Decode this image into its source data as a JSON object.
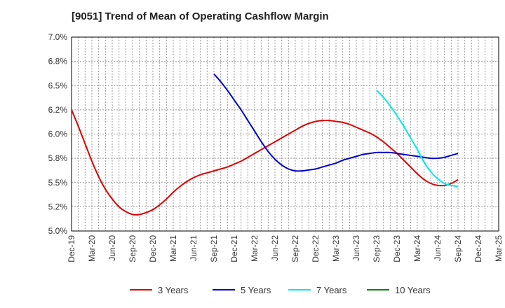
{
  "title": "[9051]  Trend of Mean of Operating Cashflow Margin",
  "chart_data": {
    "type": "line",
    "title": "[9051]  Trend of Mean of Operating Cashflow Margin",
    "xlabel": "",
    "ylabel": "",
    "x_tick_labels": [
      "Dec-19",
      "Mar-20",
      "Jun-20",
      "Sep-20",
      "Dec-20",
      "Mar-21",
      "Jun-21",
      "Sep-21",
      "Dec-21",
      "Mar-22",
      "Jun-22",
      "Sep-22",
      "Dec-22",
      "Mar-23",
      "Jun-23",
      "Sep-23",
      "Dec-23",
      "Mar-24",
      "Jun-24",
      "Sep-24",
      "Dec-24",
      "Mar-25"
    ],
    "y_tick_labels": [
      "5.0%",
      "5.2%",
      "5.5%",
      "5.8%",
      "6.0%",
      "6.2%",
      "6.5%",
      "6.8%",
      "7.0%"
    ],
    "ylim": [
      5.0,
      7.0
    ],
    "grid": true,
    "legend_position": "bottom",
    "colors": {
      "3 Years": "#dd0000",
      "5 Years": "#0000cc",
      "7 Years": "#00e5ee",
      "10 Years": "#008800"
    },
    "series": [
      {
        "name": "3 Years",
        "x": [
          "2019-12",
          "2020-01",
          "2020-02",
          "2020-03",
          "2020-04",
          "2020-05",
          "2020-06",
          "2020-07",
          "2020-08",
          "2020-09",
          "2020-10",
          "2020-11",
          "2020-12",
          "2021-01",
          "2021-02",
          "2021-03",
          "2021-04",
          "2021-05",
          "2021-06",
          "2021-07",
          "2021-08",
          "2021-09",
          "2021-10",
          "2021-11",
          "2021-12",
          "2022-01",
          "2022-02",
          "2022-03",
          "2022-04",
          "2022-05",
          "2022-06",
          "2022-07",
          "2022-08",
          "2022-09",
          "2022-10",
          "2022-11",
          "2022-12",
          "2023-01",
          "2023-02",
          "2023-03",
          "2023-04",
          "2023-05",
          "2023-06",
          "2023-07",
          "2023-08",
          "2023-09",
          "2023-10",
          "2023-11",
          "2023-12",
          "2024-01",
          "2024-02",
          "2024-03",
          "2024-04",
          "2024-05",
          "2024-06",
          "2024-07",
          "2024-08",
          "2024-09"
        ],
        "values": [
          6.25,
          6.08,
          5.9,
          5.72,
          5.56,
          5.43,
          5.33,
          5.25,
          5.2,
          5.17,
          5.17,
          5.19,
          5.22,
          5.27,
          5.33,
          5.4,
          5.46,
          5.51,
          5.55,
          5.58,
          5.6,
          5.62,
          5.64,
          5.66,
          5.69,
          5.72,
          5.76,
          5.8,
          5.84,
          5.88,
          5.92,
          5.96,
          6.0,
          6.04,
          6.08,
          6.11,
          6.13,
          6.14,
          6.14,
          6.13,
          6.12,
          6.1,
          6.07,
          6.04,
          6.01,
          5.97,
          5.92,
          5.86,
          5.8,
          5.73,
          5.66,
          5.59,
          5.53,
          5.49,
          5.47,
          5.47,
          5.49,
          5.53
        ]
      },
      {
        "name": "5 Years",
        "x": [
          "2021-09",
          "2021-10",
          "2021-11",
          "2021-12",
          "2022-01",
          "2022-02",
          "2022-03",
          "2022-04",
          "2022-05",
          "2022-06",
          "2022-07",
          "2022-08",
          "2022-09",
          "2022-10",
          "2022-11",
          "2022-12",
          "2023-01",
          "2023-02",
          "2023-03",
          "2023-04",
          "2023-05",
          "2023-06",
          "2023-07",
          "2023-08",
          "2023-09",
          "2023-10",
          "2023-11",
          "2023-12",
          "2024-01",
          "2024-02",
          "2024-03",
          "2024-04",
          "2024-05",
          "2024-06",
          "2024-07",
          "2024-08",
          "2024-09"
        ],
        "values": [
          6.62,
          6.54,
          6.45,
          6.35,
          6.25,
          6.14,
          6.03,
          5.92,
          5.82,
          5.74,
          5.68,
          5.64,
          5.62,
          5.62,
          5.63,
          5.64,
          5.66,
          5.68,
          5.7,
          5.73,
          5.75,
          5.77,
          5.79,
          5.8,
          5.81,
          5.81,
          5.81,
          5.8,
          5.79,
          5.78,
          5.77,
          5.76,
          5.75,
          5.75,
          5.76,
          5.78,
          5.8
        ]
      },
      {
        "name": "7 Years",
        "x": [
          "2023-09",
          "2023-10",
          "2023-11",
          "2023-12",
          "2024-01",
          "2024-02",
          "2024-03",
          "2024-04",
          "2024-05",
          "2024-06",
          "2024-07",
          "2024-08",
          "2024-09"
        ],
        "values": [
          6.45,
          6.38,
          6.29,
          6.19,
          6.08,
          5.96,
          5.84,
          5.71,
          5.61,
          5.54,
          5.49,
          5.47,
          5.46
        ]
      },
      {
        "name": "10 Years",
        "x": [],
        "values": []
      }
    ]
  }
}
